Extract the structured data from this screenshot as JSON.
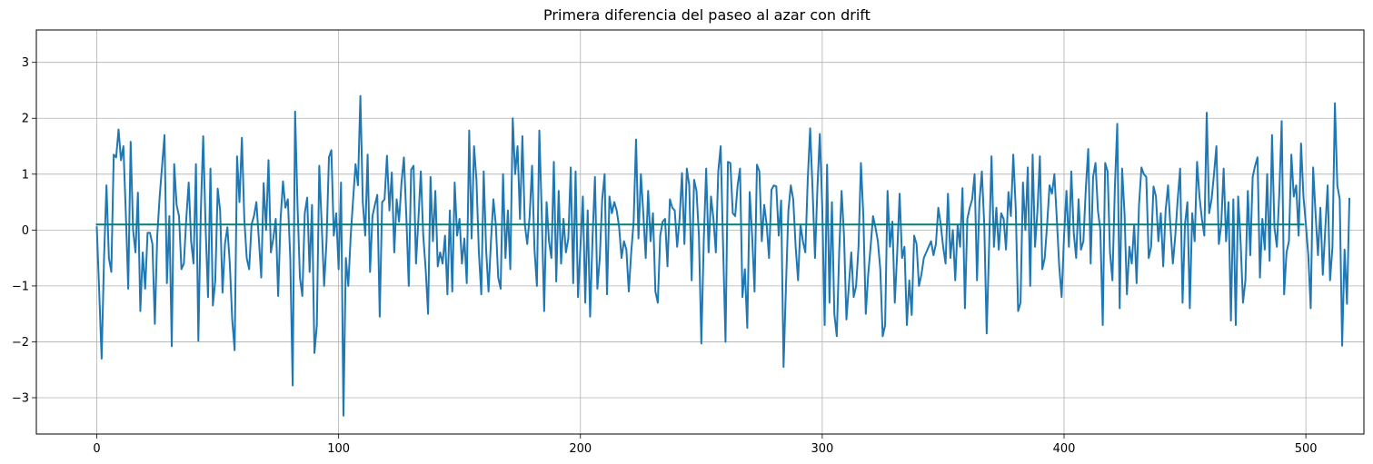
{
  "chart_data": {
    "type": "line",
    "title": "Primera diferencia del paseo al azar con drift",
    "xlabel": "",
    "ylabel": "",
    "xlim": [
      -25,
      524
    ],
    "ylim": [
      -3.65,
      3.58
    ],
    "grid": true,
    "x_ticks": [
      0,
      100,
      200,
      300,
      400,
      500
    ],
    "x_tick_labels": [
      "0",
      "100",
      "200",
      "300",
      "400",
      "500"
    ],
    "y_ticks": [
      -3,
      -2,
      -1,
      0,
      1,
      2,
      3
    ],
    "y_tick_labels": [
      "−3",
      "−2",
      "−1",
      "0",
      "1",
      "2",
      "3"
    ],
    "series": [
      {
        "color": "#1f77b4",
        "x_start": 0,
        "x_step": 1,
        "values": [
          0.05,
          -1.1,
          -2.3,
          -0.5,
          0.8,
          -0.5,
          -0.75,
          1.35,
          1.3,
          1.8,
          1.25,
          1.5,
          0.3,
          -1.05,
          1.58,
          0.0,
          -0.4,
          0.67,
          -1.45,
          -0.4,
          -1.05,
          -0.05,
          -0.05,
          -0.25,
          -1.68,
          -0.1,
          0.6,
          1.15,
          1.7,
          -0.95,
          0.25,
          -2.08,
          1.18,
          0.45,
          0.25,
          -0.7,
          -0.6,
          0.2,
          0.85,
          -0.2,
          -0.6,
          1.18,
          -1.98,
          0.3,
          1.68,
          0.05,
          -1.2,
          1.1,
          -1.35,
          -0.9,
          0.74,
          0.35,
          -1.12,
          -0.25,
          0.05,
          -0.6,
          -1.6,
          -2.15,
          1.32,
          0.5,
          1.65,
          0.2,
          -0.5,
          -0.7,
          0.1,
          0.25,
          0.5,
          -0.15,
          -0.85,
          0.84,
          0.0,
          1.25,
          -0.4,
          -0.15,
          0.2,
          -1.18,
          0.2,
          0.87,
          0.4,
          0.55,
          -0.5,
          -2.78,
          2.12,
          0.45,
          -0.85,
          -1.18,
          0.3,
          0.58,
          -0.75,
          0.45,
          -2.2,
          -1.7,
          1.15,
          0.1,
          -1.0,
          -0.2,
          1.3,
          1.43,
          -0.1,
          0.3,
          -0.7,
          0.85,
          -3.32,
          -0.5,
          -1.0,
          -0.1,
          0.55,
          1.18,
          0.8,
          2.4,
          0.5,
          -0.1,
          1.35,
          -0.75,
          0.25,
          0.45,
          0.63,
          -1.55,
          0.5,
          0.55,
          1.33,
          0.35,
          1.03,
          -0.4,
          0.55,
          0.15,
          0.85,
          1.3,
          0.25,
          -1.0,
          1.08,
          1.15,
          -0.6,
          0.2,
          1.05,
          -0.1,
          -0.7,
          -1.5,
          0.95,
          -0.2,
          0.7,
          -0.65,
          -0.4,
          -0.6,
          -0.1,
          -1.15,
          0.35,
          -1.1,
          0.85,
          -0.1,
          0.2,
          -0.6,
          -0.15,
          -0.95,
          1.78,
          -0.15,
          1.5,
          0.9,
          -0.4,
          -1.15,
          1.05,
          -0.35,
          -1.1,
          -0.2,
          0.55,
          0.1,
          -0.85,
          -1.05,
          1.0,
          -0.5,
          0.35,
          -0.7,
          2.0,
          1.0,
          1.5,
          0.2,
          1.68,
          0.1,
          -0.25,
          0.25,
          1.15,
          -0.35,
          -1.0,
          1.78,
          0.3,
          -1.45,
          0.5,
          -0.2,
          -0.5,
          1.22,
          -0.92,
          0.7,
          -0.6,
          0.2,
          -0.4,
          -0.15,
          1.12,
          -0.95,
          1.05,
          -1.2,
          -0.3,
          0.6,
          -1.3,
          0.35,
          -1.55,
          -0.15,
          0.95,
          -1.05,
          -0.5,
          0.55,
          1.0,
          -1.15,
          0.6,
          0.3,
          0.5,
          0.35,
          0.05,
          -0.5,
          -0.2,
          -0.35,
          -1.1,
          -0.4,
          0.15,
          1.62,
          -0.15,
          1.0,
          0.3,
          -0.5,
          0.7,
          -0.2,
          0.3,
          -1.1,
          -1.3,
          -0.1,
          0.15,
          0.2,
          -0.65,
          0.55,
          0.4,
          0.35,
          -0.3,
          0.2,
          1.02,
          -0.25,
          1.1,
          0.8,
          -0.9,
          0.9,
          0.7,
          -0.1,
          -2.03,
          -0.2,
          1.1,
          -0.4,
          0.6,
          0.2,
          -0.4,
          1.05,
          1.5,
          -0.3,
          -2.0,
          1.22,
          1.2,
          0.3,
          0.25,
          0.8,
          1.1,
          -1.2,
          -0.7,
          -1.75,
          0.68,
          -0.1,
          -1.1,
          1.17,
          1.05,
          -0.2,
          0.45,
          0.1,
          -0.5,
          0.72,
          0.8,
          0.78,
          -0.1,
          0.53,
          -2.45,
          -1.0,
          0.35,
          0.8,
          0.55,
          -0.3,
          -0.9,
          0.1,
          -0.2,
          -0.4,
          0.9,
          1.82,
          0.72,
          -0.5,
          0.75,
          1.72,
          0.4,
          -1.7,
          1.17,
          -1.3,
          0.5,
          -1.5,
          -1.9,
          -0.4,
          0.7,
          -0.1,
          -1.6,
          -1.0,
          -0.4,
          -1.2,
          -1.0,
          -0.3,
          1.2,
          0.25,
          -1.5,
          -0.8,
          -0.3,
          0.25,
          0.05,
          -0.2,
          -0.7,
          -1.9,
          -1.7,
          0.7,
          -0.3,
          0.15,
          -1.3,
          -0.4,
          0.65,
          -0.5,
          -0.3,
          -1.7,
          -0.9,
          -1.52,
          -0.1,
          -0.25,
          -1.0,
          -0.8,
          -0.5,
          -0.4,
          -0.3,
          -0.2,
          -0.45,
          -0.25,
          0.4,
          0.1,
          -0.3,
          -0.6,
          0.65,
          -0.5,
          0.0,
          -0.9,
          0.1,
          -0.3,
          0.75,
          -1.4,
          0.2,
          0.4,
          0.55,
          1.0,
          -0.9,
          0.5,
          1.05,
          0.1,
          -1.85,
          -0.3,
          1.32,
          -0.3,
          0.4,
          -0.35,
          0.3,
          0.2,
          -0.35,
          0.68,
          0.25,
          1.35,
          0.4,
          -1.45,
          -1.3,
          0.85,
          0.0,
          1.12,
          -1.0,
          1.35,
          -0.3,
          0.35,
          1.32,
          -0.7,
          -0.5,
          0.1,
          0.8,
          0.65,
          1.0,
          0.2,
          -0.65,
          -1.2,
          -0.1,
          0.7,
          -0.3,
          1.05,
          -0.05,
          -0.5,
          0.55,
          -0.35,
          -0.2,
          0.75,
          1.45,
          -0.6,
          0.95,
          1.2,
          0.35,
          0.0,
          -1.7,
          1.2,
          1.05,
          -0.4,
          -0.9,
          0.75,
          1.9,
          -1.4,
          1.1,
          0.3,
          -1.15,
          -0.3,
          -0.6,
          0.1,
          -0.95,
          0.45,
          1.12,
          1.0,
          0.95,
          -0.5,
          -0.3,
          0.78,
          0.6,
          -0.2,
          0.3,
          -0.65,
          0.35,
          0.8,
          0.05,
          -0.6,
          -0.1,
          0.55,
          1.1,
          -1.3,
          0.1,
          0.5,
          -1.4,
          0.3,
          -0.2,
          1.22,
          0.6,
          0.2,
          -0.1,
          2.1,
          0.3,
          0.55,
          1.0,
          1.5,
          -0.25,
          0.1,
          1.1,
          -0.2,
          0.5,
          -1.62,
          0.55,
          -1.7,
          0.6,
          -0.2,
          -1.3,
          -0.9,
          0.7,
          -0.45,
          0.95,
          1.15,
          1.3,
          -0.85,
          0.2,
          -0.35,
          1.0,
          -0.55,
          1.7,
          0.05,
          -0.3,
          0.65,
          1.95,
          -1.15,
          -0.4,
          -0.2,
          1.35,
          0.6,
          0.8,
          -0.1,
          1.55,
          0.6,
          0.1,
          -0.45,
          -1.4,
          1.12,
          0.3,
          -0.45,
          0.4,
          -0.8,
          0.0,
          0.8,
          -0.9,
          -0.3,
          2.27,
          0.8,
          0.55,
          -2.07,
          -0.35,
          -1.32,
          0.56
        ]
      },
      {
        "color": "#008080",
        "x_start": 0,
        "x_step": 499,
        "values": [
          0.1,
          0.1
        ]
      }
    ]
  }
}
